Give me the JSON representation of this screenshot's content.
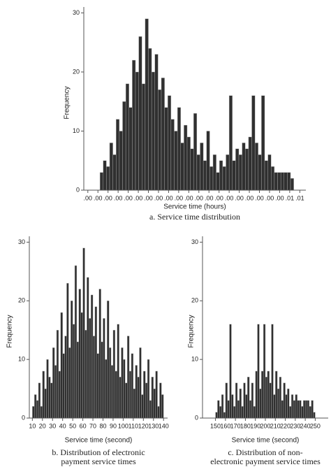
{
  "chart_data": [
    {
      "type": "histogram",
      "y_label": "Frequency",
      "x_label": "Service time (hours)",
      "caption": [
        "a. Service time distribution"
      ],
      "color": "#303030",
      "bins": [
        0.0003,
        0.00038,
        0.00046,
        0.00054,
        0.00062,
        0.0007,
        0.00078,
        0.00086,
        0.00094,
        0.00102,
        0.0011,
        0.00118,
        0.00126,
        0.00134,
        0.00142,
        0.0015,
        0.00158,
        0.00166,
        0.00174,
        0.00182,
        0.0019,
        0.00198,
        0.00206,
        0.00214,
        0.00222,
        0.0023,
        0.00238,
        0.00246,
        0.00254,
        0.00262,
        0.0027,
        0.00278,
        0.00286,
        0.00294,
        0.00302,
        0.0031,
        0.00318,
        0.00326,
        0.00334,
        0.00342,
        0.0035,
        0.00358,
        0.00366,
        0.00374,
        0.00382,
        0.0039,
        0.00398,
        0.00406,
        0.00414,
        0.00422,
        0.0043,
        0.00438,
        0.00446,
        0.00454,
        0.00462,
        0.0047,
        0.00478,
        0.00486,
        0.00494,
        0.00502,
        0.0051
      ],
      "values": [
        3,
        5,
        4,
        8,
        6,
        12,
        10,
        15,
        18,
        14,
        22,
        20,
        26,
        18,
        29,
        24,
        20,
        23,
        17,
        19,
        14,
        16,
        12,
        10,
        14,
        8,
        11,
        9,
        7,
        13,
        6,
        8,
        5,
        10,
        4,
        6,
        3,
        5,
        4,
        6,
        16,
        5,
        7,
        6,
        8,
        7,
        9,
        16,
        8,
        6,
        16,
        5,
        6,
        4,
        3,
        3,
        3,
        3,
        3,
        2
      ],
      "xlim": [
        -0.0001,
        0.0054
      ],
      "xticks": [
        {
          "value": 0,
          "label": ".00"
        },
        {
          "value": 0.00025,
          "label": ".00"
        },
        {
          "value": 0.0005,
          "label": ".00"
        },
        {
          "value": 0.00075,
          "label": ".00"
        },
        {
          "value": 0.001,
          "label": ".00"
        },
        {
          "value": 0.00125,
          "label": ".00"
        },
        {
          "value": 0.0015,
          "label": ".00"
        },
        {
          "value": 0.00175,
          "label": ".00"
        },
        {
          "value": 0.002,
          "label": ".00"
        },
        {
          "value": 0.00225,
          "label": ".00"
        },
        {
          "value": 0.0025,
          "label": ".00"
        },
        {
          "value": 0.00275,
          "label": ".00"
        },
        {
          "value": 0.003,
          "label": ".00"
        },
        {
          "value": 0.00325,
          "label": ".00"
        },
        {
          "value": 0.0035,
          "label": ".00"
        },
        {
          "value": 0.00375,
          "label": ".00"
        },
        {
          "value": 0.004,
          "label": ".00"
        },
        {
          "value": 0.00425,
          "label": ".00"
        },
        {
          "value": 0.0045,
          "label": ".00"
        },
        {
          "value": 0.00475,
          "label": ".00"
        },
        {
          "value": 0.005,
          "label": ".01"
        },
        {
          "value": 0.00525,
          "label": ".01"
        }
      ],
      "ylim": [
        0,
        31
      ],
      "yticks": [
        0,
        10,
        20,
        30
      ]
    },
    {
      "type": "histogram",
      "y_label": "Frequency",
      "x_label": "Service time (second)",
      "caption": [
        "b. Distribution of electronic",
        "payment service times"
      ],
      "color": "#303030",
      "bins": [
        10,
        12,
        14,
        16,
        18,
        20,
        22,
        24,
        26,
        28,
        30,
        32,
        34,
        36,
        38,
        40,
        42,
        44,
        46,
        48,
        50,
        52,
        54,
        56,
        58,
        60,
        62,
        64,
        66,
        68,
        70,
        72,
        74,
        76,
        78,
        80,
        82,
        84,
        86,
        88,
        90,
        92,
        94,
        96,
        98,
        100,
        102,
        104,
        106,
        108,
        110,
        112,
        114,
        116,
        118,
        120,
        122,
        124,
        126,
        128,
        130,
        132,
        134,
        136,
        138,
        140
      ],
      "values": [
        2,
        4,
        3,
        6,
        2,
        8,
        5,
        10,
        7,
        6,
        12,
        9,
        15,
        8,
        18,
        11,
        14,
        23,
        12,
        20,
        16,
        26,
        13,
        22,
        18,
        29,
        15,
        24,
        17,
        21,
        14,
        19,
        11,
        22,
        13,
        17,
        10,
        20,
        12,
        9,
        15,
        8,
        16,
        7,
        12,
        10,
        6,
        14,
        8,
        11,
        5,
        9,
        7,
        12,
        4,
        8,
        6,
        10,
        3,
        7,
        5,
        8,
        2,
        6,
        4
      ],
      "xlim": [
        7,
        144
      ],
      "xticks": [
        10,
        20,
        30,
        40,
        50,
        60,
        70,
        80,
        90,
        100,
        110,
        120,
        130,
        140
      ],
      "ylim": [
        0,
        31
      ],
      "yticks": [
        0,
        10,
        20,
        30
      ]
    },
    {
      "type": "histogram",
      "y_label": "Frequency",
      "x_label": "Service time (second)",
      "caption": [
        "c. Distribution of non-",
        "electronic payment service times"
      ],
      "color": "#303030",
      "bins": [
        150,
        152,
        154,
        156,
        158,
        160,
        162,
        164,
        166,
        168,
        170,
        172,
        174,
        176,
        178,
        180,
        182,
        184,
        186,
        188,
        190,
        192,
        194,
        196,
        198,
        200,
        202,
        204,
        206,
        208,
        210,
        212,
        214,
        216,
        218,
        220,
        222,
        224,
        226,
        228,
        230,
        232,
        234,
        236,
        238,
        240,
        242,
        244,
        246,
        248,
        250
      ],
      "values": [
        1,
        3,
        2,
        4,
        1,
        6,
        3,
        16,
        4,
        2,
        6,
        3,
        5,
        2,
        6,
        4,
        7,
        3,
        6,
        2,
        8,
        16,
        5,
        8,
        16,
        7,
        8,
        6,
        16,
        4,
        8,
        5,
        7,
        3,
        6,
        4,
        5,
        2,
        4,
        3,
        4,
        3,
        3,
        2,
        3,
        3,
        3,
        2,
        3,
        1
      ],
      "xlim": [
        137,
        263
      ],
      "xticks": [
        150,
        160,
        170,
        180,
        190,
        200,
        210,
        220,
        230,
        240,
        250
      ],
      "ylim": [
        0,
        31
      ],
      "yticks": [
        0,
        10,
        20,
        30
      ]
    }
  ]
}
